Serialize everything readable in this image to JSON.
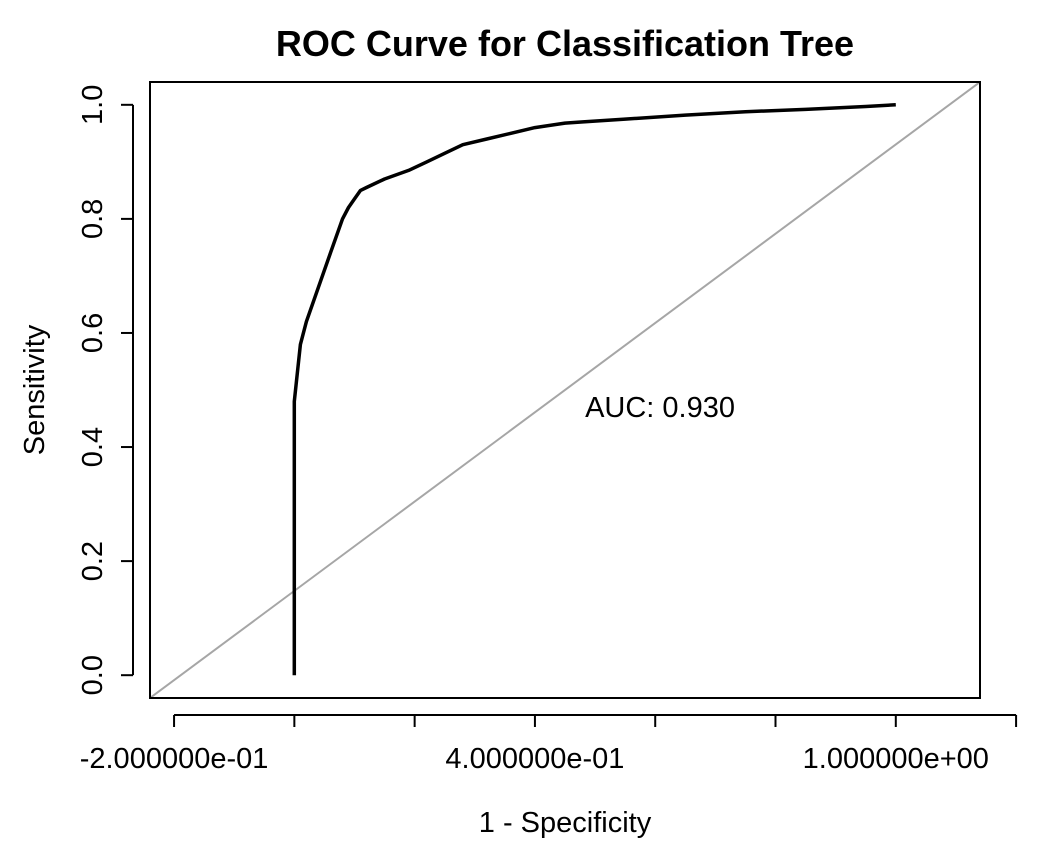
{
  "chart_data": {
    "type": "line",
    "title": "ROC Curve for Classification Tree",
    "xlabel": "1 - Specificity",
    "ylabel": "Sensitivity",
    "xlim": [
      -0.24,
      1.14
    ],
    "ylim": [
      -0.04,
      1.04
    ],
    "x_ticks": [
      -0.2,
      0.0,
      0.2,
      0.4,
      0.6,
      0.8,
      1.0,
      1.2
    ],
    "x_tick_labels": [
      {
        "value": -0.2,
        "label": "-2.000000e-01"
      },
      {
        "value": 0.4,
        "label": "4.000000e-01"
      },
      {
        "value": 1.0,
        "label": "1.000000e+00"
      }
    ],
    "y_ticks": [
      {
        "value": 0.0,
        "label": "0.0"
      },
      {
        "value": 0.2,
        "label": "0.2"
      },
      {
        "value": 0.4,
        "label": "0.4"
      },
      {
        "value": 0.6,
        "label": "0.6"
      },
      {
        "value": 0.8,
        "label": "0.8"
      },
      {
        "value": 1.0,
        "label": "1.0"
      }
    ],
    "annotation": {
      "text": "AUC: 0.930",
      "x": 0.5,
      "y": 0.47
    },
    "series": [
      {
        "color": "#000000",
        "x": [
          0.0,
          0.0,
          0.0,
          0.01,
          0.02,
          0.04,
          0.06,
          0.08,
          0.09,
          0.1,
          0.11,
          0.12,
          0.15,
          0.19,
          0.22,
          0.25,
          0.28,
          0.32,
          0.36,
          0.4,
          0.45,
          0.48,
          0.55,
          0.65,
          0.75,
          0.85,
          0.95,
          1.0
        ],
        "y": [
          0.0,
          0.2,
          0.48,
          0.58,
          0.62,
          0.68,
          0.74,
          0.8,
          0.82,
          0.835,
          0.85,
          0.855,
          0.87,
          0.885,
          0.9,
          0.915,
          0.93,
          0.94,
          0.95,
          0.96,
          0.968,
          0.97,
          0.975,
          0.982,
          0.988,
          0.992,
          0.997,
          1.0
        ]
      }
    ],
    "reference_line": {
      "color": "#a6a6a6",
      "x": [
        -0.24,
        1.14
      ],
      "y": [
        -0.04,
        1.04
      ]
    },
    "grid": false,
    "legend": "none"
  }
}
